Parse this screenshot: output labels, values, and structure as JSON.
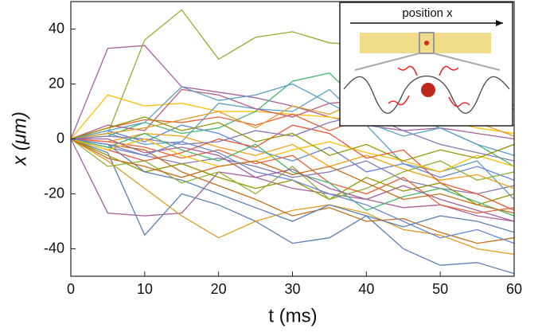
{
  "chart_data": {
    "type": "line",
    "xlabel": "t (ms)",
    "ylabel": "x (μm)",
    "annotation": "position x",
    "x": [
      0,
      5,
      10,
      15,
      20,
      25,
      30,
      35,
      40,
      45,
      50,
      55,
      60
    ],
    "xlim": [
      0,
      60
    ],
    "xticks": [
      0,
      10,
      20,
      30,
      40,
      50,
      60
    ],
    "ylim": [
      -50,
      50
    ],
    "yticks": [
      -40,
      -20,
      0,
      20,
      40
    ],
    "series": [
      {
        "color": "#A5609D",
        "values": [
          0,
          33,
          34,
          19,
          17,
          15,
          12,
          8,
          5,
          3,
          4,
          2,
          0
        ]
      },
      {
        "color": "#8FB032",
        "values": [
          0,
          2,
          36,
          47,
          29,
          37,
          39,
          35,
          34,
          30,
          24,
          22,
          12
        ]
      },
      {
        "color": "#A5609D",
        "values": [
          0,
          -27,
          -28,
          -27,
          -12,
          -14,
          -18,
          -20,
          -22,
          -25,
          -24,
          -28,
          -30
        ]
      },
      {
        "color": "#5E81B5",
        "values": [
          0,
          -5,
          -35,
          -20,
          -24,
          -30,
          -38,
          -36,
          -28,
          -40,
          -46,
          -45,
          -49
        ]
      },
      {
        "color": "#FFBF00",
        "values": [
          0,
          16,
          12,
          13,
          10,
          10,
          9,
          8,
          6,
          5,
          7,
          4,
          2
        ]
      },
      {
        "color": "#E19C24",
        "values": [
          0,
          -8,
          -18,
          -28,
          -36,
          -30,
          -26,
          -24,
          -27,
          -33,
          -35,
          -40,
          -42
        ]
      },
      {
        "color": "#EB6235",
        "values": [
          0,
          4,
          7,
          6,
          8,
          5,
          9,
          3,
          8,
          12,
          6,
          9,
          11
        ]
      },
      {
        "color": "#8778B3",
        "values": [
          0,
          -3,
          -6,
          -9,
          -7,
          -10,
          -14,
          -12,
          -8,
          -15,
          -18,
          -20,
          -17
        ]
      },
      {
        "color": "#5D9EC7",
        "values": [
          0,
          2,
          -2,
          -1,
          13,
          11,
          10,
          18,
          5,
          -9,
          -12,
          -8,
          -22
        ]
      },
      {
        "color": "#47B66D",
        "values": [
          0,
          1,
          6,
          2,
          4,
          10,
          21,
          24,
          11,
          9,
          4,
          -2,
          -10
        ]
      },
      {
        "color": "#C56E1A",
        "values": [
          0,
          -2,
          -4,
          -12,
          -17,
          -22,
          -28,
          -25,
          -30,
          -29,
          -34,
          -38,
          -36
        ]
      },
      {
        "color": "#929600",
        "values": [
          0,
          -6,
          -12,
          -9,
          -14,
          -18,
          -15,
          -22,
          -14,
          -19,
          -16,
          -24,
          -20
        ]
      },
      {
        "color": "#6685D9",
        "values": [
          0,
          3,
          -1,
          5,
          2,
          -4,
          -8,
          -3,
          -12,
          -9,
          -14,
          -10,
          -15
        ]
      },
      {
        "color": "#F89F13",
        "values": [
          0,
          -1,
          2,
          1,
          -3,
          -6,
          -2,
          -10,
          -6,
          -11,
          -15,
          -13,
          -18
        ]
      },
      {
        "color": "#BC5B80",
        "values": [
          0,
          5,
          3,
          18,
          16,
          11,
          8,
          13,
          14,
          9,
          10,
          7,
          5
        ]
      },
      {
        "color": "#E95536",
        "values": [
          0,
          -4,
          -8,
          -5,
          0,
          -3,
          5,
          2,
          -7,
          -4,
          -16,
          -20,
          -26
        ]
      },
      {
        "color": "#5E81B5",
        "values": [
          0,
          -2,
          -12,
          -15,
          -20,
          -25,
          -30,
          -24,
          -28,
          -32,
          -28,
          -30,
          -34
        ]
      },
      {
        "color": "#8FB032",
        "values": [
          0,
          -10,
          -8,
          -16,
          -12,
          -20,
          -10,
          -22,
          -18,
          -12,
          -8,
          -15,
          -12
        ]
      },
      {
        "color": "#E19C24",
        "values": [
          0,
          2,
          4,
          7,
          10,
          4,
          12,
          9,
          15,
          8,
          14,
          6,
          1
        ]
      },
      {
        "color": "#8778B3",
        "values": [
          0,
          1,
          0,
          -2,
          -1,
          3,
          1,
          6,
          9,
          3,
          -2,
          -5,
          -8
        ]
      },
      {
        "color": "#EB6235",
        "values": [
          0,
          -1,
          -3,
          -7,
          -4,
          -9,
          -6,
          -16,
          -20,
          -14,
          -24,
          -27,
          -25
        ]
      },
      {
        "color": "#47B66D",
        "values": [
          0,
          -3,
          2,
          -4,
          -8,
          -2,
          -12,
          -16,
          -26,
          -21,
          -18,
          -23,
          -28
        ]
      },
      {
        "color": "#5D9EC7",
        "values": [
          0,
          3,
          6,
          19,
          14,
          16,
          20,
          13,
          6,
          1,
          4,
          -2,
          -6
        ]
      },
      {
        "color": "#FFBF00",
        "values": [
          0,
          -4,
          0,
          -6,
          -10,
          -8,
          -4,
          -1,
          -5,
          -8,
          -12,
          -6,
          -10
        ]
      },
      {
        "color": "#A5609D",
        "values": [
          0,
          0,
          -5,
          -3,
          -6,
          -14,
          -11,
          -18,
          -22,
          -17,
          -22,
          -26,
          -30
        ]
      },
      {
        "color": "#C56E1A",
        "values": [
          0,
          -7,
          -10,
          -14,
          -10,
          -8,
          -13,
          -10,
          -16,
          -22,
          -20,
          -24,
          -27
        ]
      },
      {
        "color": "#929600",
        "values": [
          0,
          4,
          8,
          3,
          6,
          -1,
          2,
          -6,
          -2,
          -8,
          -4,
          -7,
          -2
        ]
      },
      {
        "color": "#6685D9",
        "values": [
          0,
          -2,
          -6,
          -1,
          -5,
          -12,
          -15,
          -20,
          -24,
          -30,
          -36,
          -33,
          -38
        ]
      }
    ]
  }
}
